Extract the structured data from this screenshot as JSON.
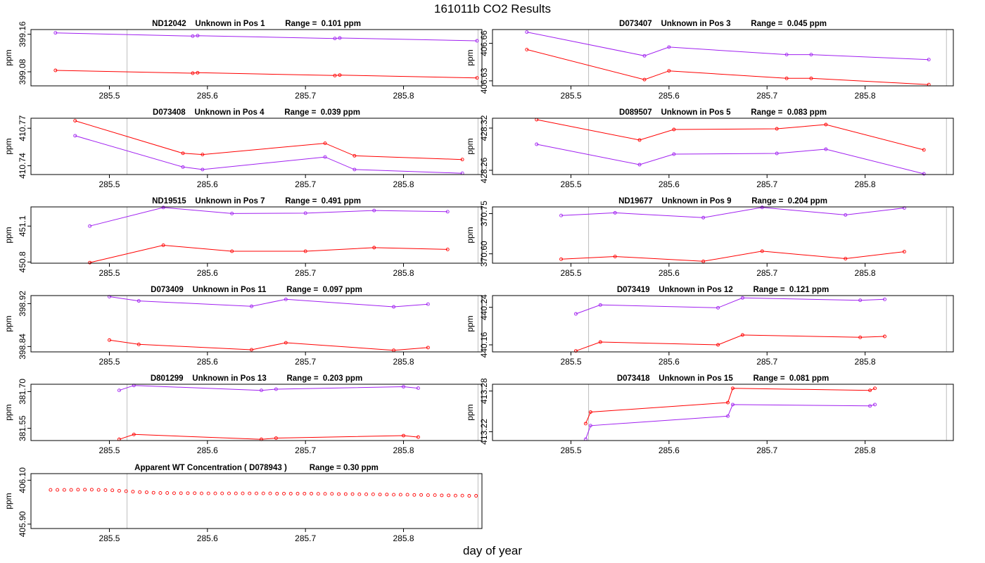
{
  "figure": {
    "title": "161011b  CO2 Results",
    "xlabel": "day of year"
  },
  "colors": {
    "series_a": "#a020f0",
    "series_b": "#ff0000",
    "vline": "#bebebe",
    "axis": "#000000"
  },
  "chart_data": [
    {
      "type": "line",
      "title": "ND12042    Unknown in Pos 1         Range =  0.101 ppm",
      "ylabel": "ppm",
      "xlim": [
        285.42,
        285.88
      ],
      "ylim": [
        399.05,
        399.17
      ],
      "xticks": [
        "285.5",
        "285.6",
        "285.7",
        "285.8"
      ],
      "xtick_values": [
        285.5,
        285.6,
        285.7,
        285.8
      ],
      "yticks": [
        "399.08",
        "399.16"
      ],
      "ytick_values": [
        399.08,
        399.16
      ],
      "vlines": [
        285.518,
        285.876
      ],
      "series": [
        {
          "name": "purple",
          "x": [
            285.445,
            285.585,
            285.59,
            285.73,
            285.735,
            285.875
          ],
          "y": [
            399.163,
            399.156,
            399.157,
            399.151,
            399.152,
            399.146
          ]
        },
        {
          "name": "red",
          "x": [
            285.445,
            285.585,
            285.59,
            285.73,
            285.735,
            285.875
          ],
          "y": [
            399.083,
            399.077,
            399.078,
            399.072,
            399.073,
            399.067
          ]
        }
      ]
    },
    {
      "type": "line",
      "title": "D073407    Unknown in Pos 3         Range =  0.045 ppm",
      "ylabel": "ppm",
      "xlim": [
        285.42,
        285.89
      ],
      "ylim": [
        406.626,
        406.671
      ],
      "xticks": [
        "285.5",
        "285.6",
        "285.7",
        "285.8"
      ],
      "xtick_values": [
        285.5,
        285.6,
        285.7,
        285.8
      ],
      "yticks": [
        "406.63",
        "406.66"
      ],
      "ytick_values": [
        406.63,
        406.66
      ],
      "vlines": [
        285.518,
        285.883
      ],
      "series": [
        {
          "name": "purple",
          "x": [
            285.455,
            285.575,
            285.6,
            285.72,
            285.745,
            285.865
          ],
          "y": [
            406.669,
            406.65,
            406.657,
            406.651,
            406.651,
            406.647
          ]
        },
        {
          "name": "red",
          "x": [
            285.455,
            285.575,
            285.6,
            285.72,
            285.745,
            285.865
          ],
          "y": [
            406.655,
            406.631,
            406.638,
            406.632,
            406.632,
            406.627
          ]
        }
      ]
    },
    {
      "type": "line",
      "title": "D073408    Unknown in Pos 4         Range =  0.039 ppm",
      "ylabel": "ppm",
      "xlim": [
        285.42,
        285.88
      ],
      "ylim": [
        410.733,
        410.778
      ],
      "xticks": [
        "285.5",
        "285.6",
        "285.7",
        "285.8"
      ],
      "xtick_values": [
        285.5,
        285.6,
        285.7,
        285.8
      ],
      "yticks": [
        "410.74",
        "410.77"
      ],
      "ytick_values": [
        410.74,
        410.77
      ],
      "vlines": [
        285.518,
        285.876
      ],
      "series": [
        {
          "name": "red",
          "x": [
            285.465,
            285.575,
            285.595,
            285.72,
            285.75,
            285.86
          ],
          "y": [
            410.776,
            410.75,
            410.749,
            410.758,
            410.748,
            410.745
          ]
        },
        {
          "name": "purple",
          "x": [
            285.465,
            285.575,
            285.595,
            285.72,
            285.75,
            285.86
          ],
          "y": [
            410.764,
            410.739,
            410.737,
            410.747,
            410.737,
            410.734
          ]
        }
      ]
    },
    {
      "type": "line",
      "title": "D089507    Unknown in Pos 5         Range =  0.083 ppm",
      "ylabel": "ppm",
      "xlim": [
        285.42,
        285.89
      ],
      "ylim": [
        428.254,
        428.334
      ],
      "xticks": [
        "285.5",
        "285.6",
        "285.7",
        "285.8"
      ],
      "xtick_values": [
        285.5,
        285.6,
        285.7,
        285.8
      ],
      "yticks": [
        "428.26",
        "428.32"
      ],
      "ytick_values": [
        428.26,
        428.32
      ],
      "vlines": [
        285.518,
        285.883
      ],
      "series": [
        {
          "name": "red",
          "x": [
            285.465,
            285.57,
            285.605,
            285.71,
            285.76,
            285.86
          ],
          "y": [
            428.332,
            428.303,
            428.318,
            428.319,
            428.325,
            428.289
          ]
        },
        {
          "name": "purple",
          "x": [
            285.465,
            285.57,
            285.605,
            285.71,
            285.76,
            285.86
          ],
          "y": [
            428.297,
            428.268,
            428.283,
            428.284,
            428.29,
            428.255
          ]
        }
      ]
    },
    {
      "type": "line",
      "title": "ND19515    Unknown in Pos 7         Range =  0.491 ppm",
      "ylabel": "ppm",
      "xlim": [
        285.42,
        285.88
      ],
      "ylim": [
        450.79,
        451.26
      ],
      "xticks": [
        "285.5",
        "285.6",
        "285.7",
        "285.8"
      ],
      "xtick_values": [
        285.5,
        285.6,
        285.7,
        285.8
      ],
      "yticks": [
        "450.8",
        "451.1"
      ],
      "ytick_values": [
        450.8,
        451.1
      ],
      "vlines": [
        285.518,
        285.876
      ],
      "series": [
        {
          "name": "purple",
          "x": [
            285.48,
            285.555,
            285.625,
            285.7,
            285.77,
            285.845
          ],
          "y": [
            451.1,
            451.255,
            451.205,
            451.208,
            451.23,
            451.22
          ]
        },
        {
          "name": "red",
          "x": [
            285.48,
            285.555,
            285.625,
            285.7,
            285.77,
            285.845
          ],
          "y": [
            450.795,
            450.94,
            450.89,
            450.89,
            450.92,
            450.905
          ]
        }
      ]
    },
    {
      "type": "line",
      "title": "ND19677    Unknown in Pos 9         Range =  0.204 ppm",
      "ylabel": "ppm",
      "xlim": [
        285.42,
        285.89
      ],
      "ylim": [
        370.565,
        370.775
      ],
      "xticks": [
        "285.5",
        "285.6",
        "285.7",
        "285.8"
      ],
      "xtick_values": [
        285.5,
        285.6,
        285.7,
        285.8
      ],
      "yticks": [
        "370.60",
        "370.75"
      ],
      "ytick_values": [
        370.6,
        370.75
      ],
      "vlines": [
        285.518,
        285.883
      ],
      "series": [
        {
          "name": "purple",
          "x": [
            285.49,
            285.545,
            285.635,
            285.695,
            285.78,
            285.84
          ],
          "y": [
            370.743,
            370.753,
            370.735,
            370.773,
            370.745,
            370.771
          ]
        },
        {
          "name": "red",
          "x": [
            285.49,
            285.545,
            285.635,
            285.695,
            285.78,
            285.84
          ],
          "y": [
            370.58,
            370.59,
            370.572,
            370.61,
            370.582,
            370.608
          ]
        }
      ]
    },
    {
      "type": "line",
      "title": "D073409    Unknown in Pos 11         Range =  0.097 ppm",
      "ylabel": "ppm",
      "xlim": [
        285.42,
        285.88
      ],
      "ylim": [
        398.83,
        398.935
      ],
      "xticks": [
        "285.5",
        "285.6",
        "285.7",
        "285.8"
      ],
      "xtick_values": [
        285.5,
        285.6,
        285.7,
        285.8
      ],
      "yticks": [
        "398.84",
        "398.92"
      ],
      "ytick_values": [
        398.84,
        398.92
      ],
      "vlines": [
        285.518,
        285.876
      ],
      "series": [
        {
          "name": "purple",
          "x": [
            285.5,
            285.53,
            285.645,
            285.68,
            285.79,
            285.825
          ],
          "y": [
            398.933,
            398.925,
            398.915,
            398.928,
            398.914,
            398.919
          ]
        },
        {
          "name": "red",
          "x": [
            285.5,
            285.53,
            285.645,
            285.68,
            285.79,
            285.825
          ],
          "y": [
            398.852,
            398.844,
            398.834,
            398.847,
            398.833,
            398.838
          ]
        }
      ]
    },
    {
      "type": "line",
      "title": "D073419    Unknown in Pos 12         Range =  0.121 ppm",
      "ylabel": "ppm",
      "xlim": [
        285.42,
        285.89
      ],
      "ylim": [
        440.145,
        440.265
      ],
      "xticks": [
        "285.5",
        "285.6",
        "285.7",
        "285.8"
      ],
      "xtick_values": [
        285.5,
        285.6,
        285.7,
        285.8
      ],
      "yticks": [
        "440.16",
        "440.24"
      ],
      "ytick_values": [
        440.16,
        440.24
      ],
      "vlines": [
        285.518,
        285.883
      ],
      "series": [
        {
          "name": "purple",
          "x": [
            285.505,
            285.53,
            285.65,
            285.675,
            285.795,
            285.82
          ],
          "y": [
            440.226,
            440.245,
            440.239,
            440.26,
            440.255,
            440.257
          ]
        },
        {
          "name": "red",
          "x": [
            285.505,
            285.53,
            285.65,
            285.675,
            285.795,
            285.82
          ],
          "y": [
            440.147,
            440.166,
            440.16,
            440.181,
            440.176,
            440.178
          ]
        }
      ]
    },
    {
      "type": "line",
      "title": "D801299    Unknown in Pos 13         Range =  0.203 ppm",
      "ylabel": "ppm",
      "xlim": [
        285.42,
        285.88
      ],
      "ylim": [
        381.5,
        381.73
      ],
      "xticks": [
        "285.5",
        "285.6",
        "285.7",
        "285.8"
      ],
      "xtick_values": [
        285.5,
        285.6,
        285.7,
        285.8
      ],
      "yticks": [
        "381.55",
        "381.70"
      ],
      "ytick_values": [
        381.55,
        381.7
      ],
      "vlines": [
        285.518,
        285.876
      ],
      "series": [
        {
          "name": "purple",
          "x": [
            285.51,
            285.525,
            285.655,
            285.67,
            285.8,
            285.815
          ],
          "y": [
            381.705,
            381.725,
            381.705,
            381.71,
            381.72,
            381.714
          ]
        },
        {
          "name": "red",
          "x": [
            285.51,
            285.525,
            285.655,
            285.67,
            285.8,
            285.815
          ],
          "y": [
            381.505,
            381.525,
            381.505,
            381.51,
            381.52,
            381.514
          ]
        }
      ]
    },
    {
      "type": "line",
      "title": "D073418    Unknown in Pos 15         Range =  0.081 ppm",
      "ylabel": "ppm",
      "xlim": [
        285.42,
        285.89
      ],
      "ylim": [
        413.207,
        413.29
      ],
      "xticks": [
        "285.5",
        "285.6",
        "285.7",
        "285.8"
      ],
      "xtick_values": [
        285.5,
        285.6,
        285.7,
        285.8
      ],
      "yticks": [
        "413.22",
        "413.28"
      ],
      "ytick_values": [
        413.22,
        413.28
      ],
      "vlines": [
        285.518,
        285.883
      ],
      "series": [
        {
          "name": "red",
          "x": [
            285.515,
            285.52,
            285.66,
            285.665,
            285.805,
            285.81
          ],
          "y": [
            413.232,
            413.249,
            413.263,
            413.284,
            413.281,
            413.284
          ]
        },
        {
          "name": "purple",
          "x": [
            285.515,
            285.52,
            285.66,
            285.665,
            285.805,
            285.81
          ],
          "y": [
            413.209,
            413.229,
            413.243,
            413.26,
            413.258,
            413.26
          ]
        }
      ]
    },
    {
      "type": "scatter",
      "title": "Apparent WT Concentration ( D078943 )          Range = 0.30 ppm",
      "ylabel": "ppm",
      "xlim": [
        285.42,
        285.88
      ],
      "ylim": [
        405.88,
        406.13
      ],
      "xticks": [
        "285.5",
        "285.6",
        "285.7",
        "285.8"
      ],
      "xtick_values": [
        285.5,
        285.6,
        285.7,
        285.8
      ],
      "yticks": [
        "405.90",
        "406.10"
      ],
      "ytick_values": [
        405.9,
        406.1
      ],
      "vlines": [
        285.518,
        285.876
      ],
      "series": [
        {
          "name": "red",
          "x": [
            285.44,
            285.447,
            285.454,
            285.461,
            285.468,
            285.475,
            285.482,
            285.489,
            285.496,
            285.503,
            285.51,
            285.517,
            285.524,
            285.531,
            285.538,
            285.545,
            285.552,
            285.559,
            285.566,
            285.573,
            285.58,
            285.587,
            285.594,
            285.601,
            285.608,
            285.615,
            285.622,
            285.629,
            285.636,
            285.643,
            285.65,
            285.657,
            285.664,
            285.671,
            285.678,
            285.685,
            285.692,
            285.699,
            285.706,
            285.713,
            285.72,
            285.727,
            285.734,
            285.741,
            285.748,
            285.755,
            285.762,
            285.769,
            285.776,
            285.783,
            285.79,
            285.797,
            285.804,
            285.811,
            285.818,
            285.825,
            285.832,
            285.839,
            285.846,
            285.853,
            285.86,
            285.867,
            285.874
          ],
          "y": [
            406.056,
            406.056,
            406.056,
            406.056,
            406.057,
            406.057,
            406.057,
            406.056,
            406.055,
            406.054,
            406.052,
            406.05,
            406.048,
            406.046,
            406.045,
            406.043,
            406.042,
            406.042,
            406.041,
            406.041,
            406.041,
            406.041,
            406.04,
            406.04,
            406.04,
            406.04,
            406.04,
            406.04,
            406.04,
            406.04,
            406.04,
            406.04,
            406.04,
            406.039,
            406.039,
            406.039,
            406.039,
            406.039,
            406.039,
            406.038,
            406.038,
            406.038,
            406.037,
            406.037,
            406.037,
            406.036,
            406.036,
            406.036,
            406.035,
            406.035,
            406.034,
            406.034,
            406.034,
            406.033,
            406.033,
            406.032,
            406.032,
            406.031,
            406.031,
            406.03,
            406.03,
            406.029,
            406.029
          ]
        }
      ]
    }
  ]
}
